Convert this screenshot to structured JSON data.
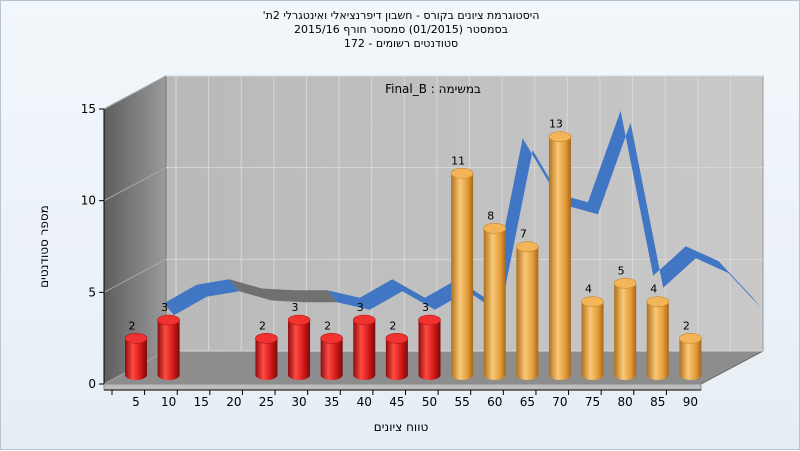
{
  "title_lines": [
    "היסטוגרמת ציונים בקורס - חשבון דיפרנציאלי ואינטגרלי 2ת'",
    "בסמסטר  (01/2015)  סמסטר חורף 2015/16",
    "סטודנטים רשומים - 172"
  ],
  "chart_data": {
    "type": "bar",
    "annotation": "במשימה : Final_B",
    "xlabel": "טווח ציונים",
    "ylabel": "מספר סטודנטים",
    "ylim": [
      0,
      15
    ],
    "yticks": [
      0,
      5,
      10,
      15
    ],
    "categories": [
      "5",
      "10",
      "15",
      "20",
      "25",
      "30",
      "35",
      "40",
      "45",
      "50",
      "55",
      "60",
      "65",
      "70",
      "75",
      "80",
      "85",
      "90"
    ],
    "values": [
      2,
      3,
      0,
      0,
      2,
      3,
      2,
      3,
      2,
      3,
      11,
      8,
      7,
      13,
      4,
      5,
      4,
      2
    ],
    "bar_colors": {
      "fail": "#e8201e",
      "pass": "#eba844"
    },
    "pass_threshold": 55,
    "curve": {
      "color": "#3a72c4",
      "color_dim": "#6b6b6b",
      "values": [
        2.5,
        3.5,
        3.8,
        3.3,
        3.2,
        3.2,
        2.8,
        3.8,
        2.8,
        3.8,
        2.6,
        11.5,
        8.5,
        8.0,
        13.0,
        4.0,
        5.6,
        4.8,
        2.9
      ]
    },
    "grid": true
  }
}
